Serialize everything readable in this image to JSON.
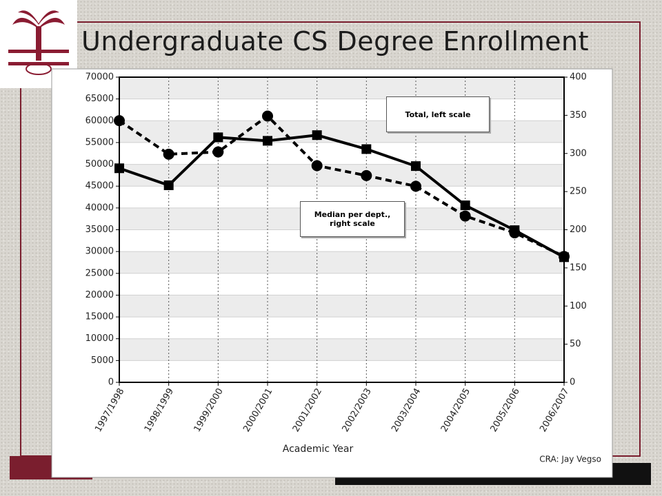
{
  "chart_data": {
    "type": "line",
    "title": "Undergraduate CS Degree Enrollment",
    "x_label": "Academic Year",
    "source": "CRA: Jay Vegso",
    "categories": [
      "1997/1998",
      "1998/1999",
      "1999/2000",
      "2000/2001",
      "2001/2002",
      "2002/2003",
      "2003/2004",
      "2004/2005",
      "2005/2006",
      "2006/2007"
    ],
    "series": [
      {
        "name": "Total, left scale",
        "color": "#000000",
        "marker": "square",
        "dashed": false,
        "axis": "y",
        "values": [
          49100,
          45200,
          56200,
          55400,
          56700,
          53500,
          49600,
          40600,
          34900,
          28700
        ]
      },
      {
        "name": "Median per dept., right scale",
        "color": "#000000",
        "marker": "circle",
        "dashed": true,
        "axis": "y2",
        "values": [
          343,
          299,
          302,
          349,
          284,
          271,
          257,
          218,
          196,
          165
        ]
      }
    ],
    "ylim": [
      0,
      70000
    ],
    "yticks": [
      0,
      5000,
      10000,
      15000,
      20000,
      25000,
      30000,
      35000,
      40000,
      45000,
      50000,
      55000,
      60000,
      65000,
      70000
    ],
    "y2lim": [
      0,
      400
    ],
    "y2ticks": [
      0,
      50,
      100,
      150,
      200,
      250,
      300,
      350,
      400
    ],
    "grid": true
  }
}
